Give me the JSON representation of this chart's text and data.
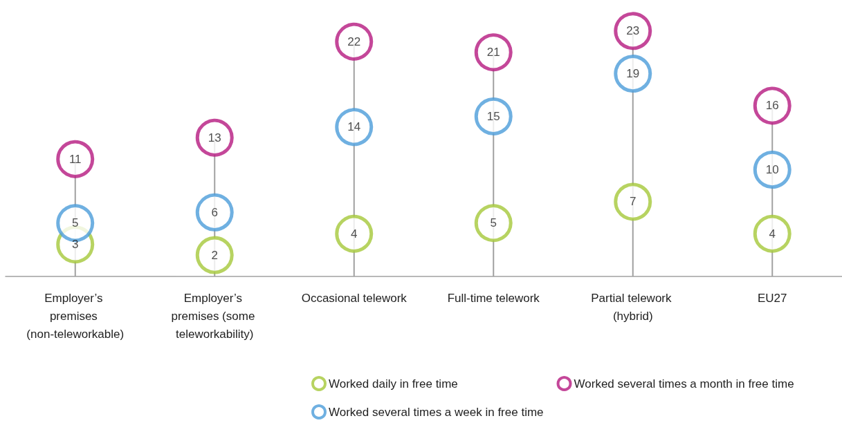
{
  "chart_data": {
    "type": "scatter",
    "categories": [
      "Employer’s premises (non-teleworkable)",
      "Employer’s premises (some teleworkability)",
      "Occasional telework",
      "Full-time telework",
      "Partial telework (hybrid)",
      "EU27"
    ],
    "series": [
      {
        "name": "Worked daily in free time",
        "color": "#a5c83a",
        "values": [
          3,
          2,
          4,
          5,
          7,
          4
        ]
      },
      {
        "name": "Worked several times a week in free time",
        "color": "#4b9cd9",
        "values": [
          5,
          6,
          14,
          15,
          19,
          10
        ]
      },
      {
        "name": "Worked several times a month in free time",
        "color": "#b5197f",
        "type": "lollipop",
        "values": [
          11,
          13,
          22,
          21,
          23,
          16
        ]
      }
    ],
    "data_labels": true,
    "legend": "bottom",
    "marker": "circle",
    "grid": false
  }
}
